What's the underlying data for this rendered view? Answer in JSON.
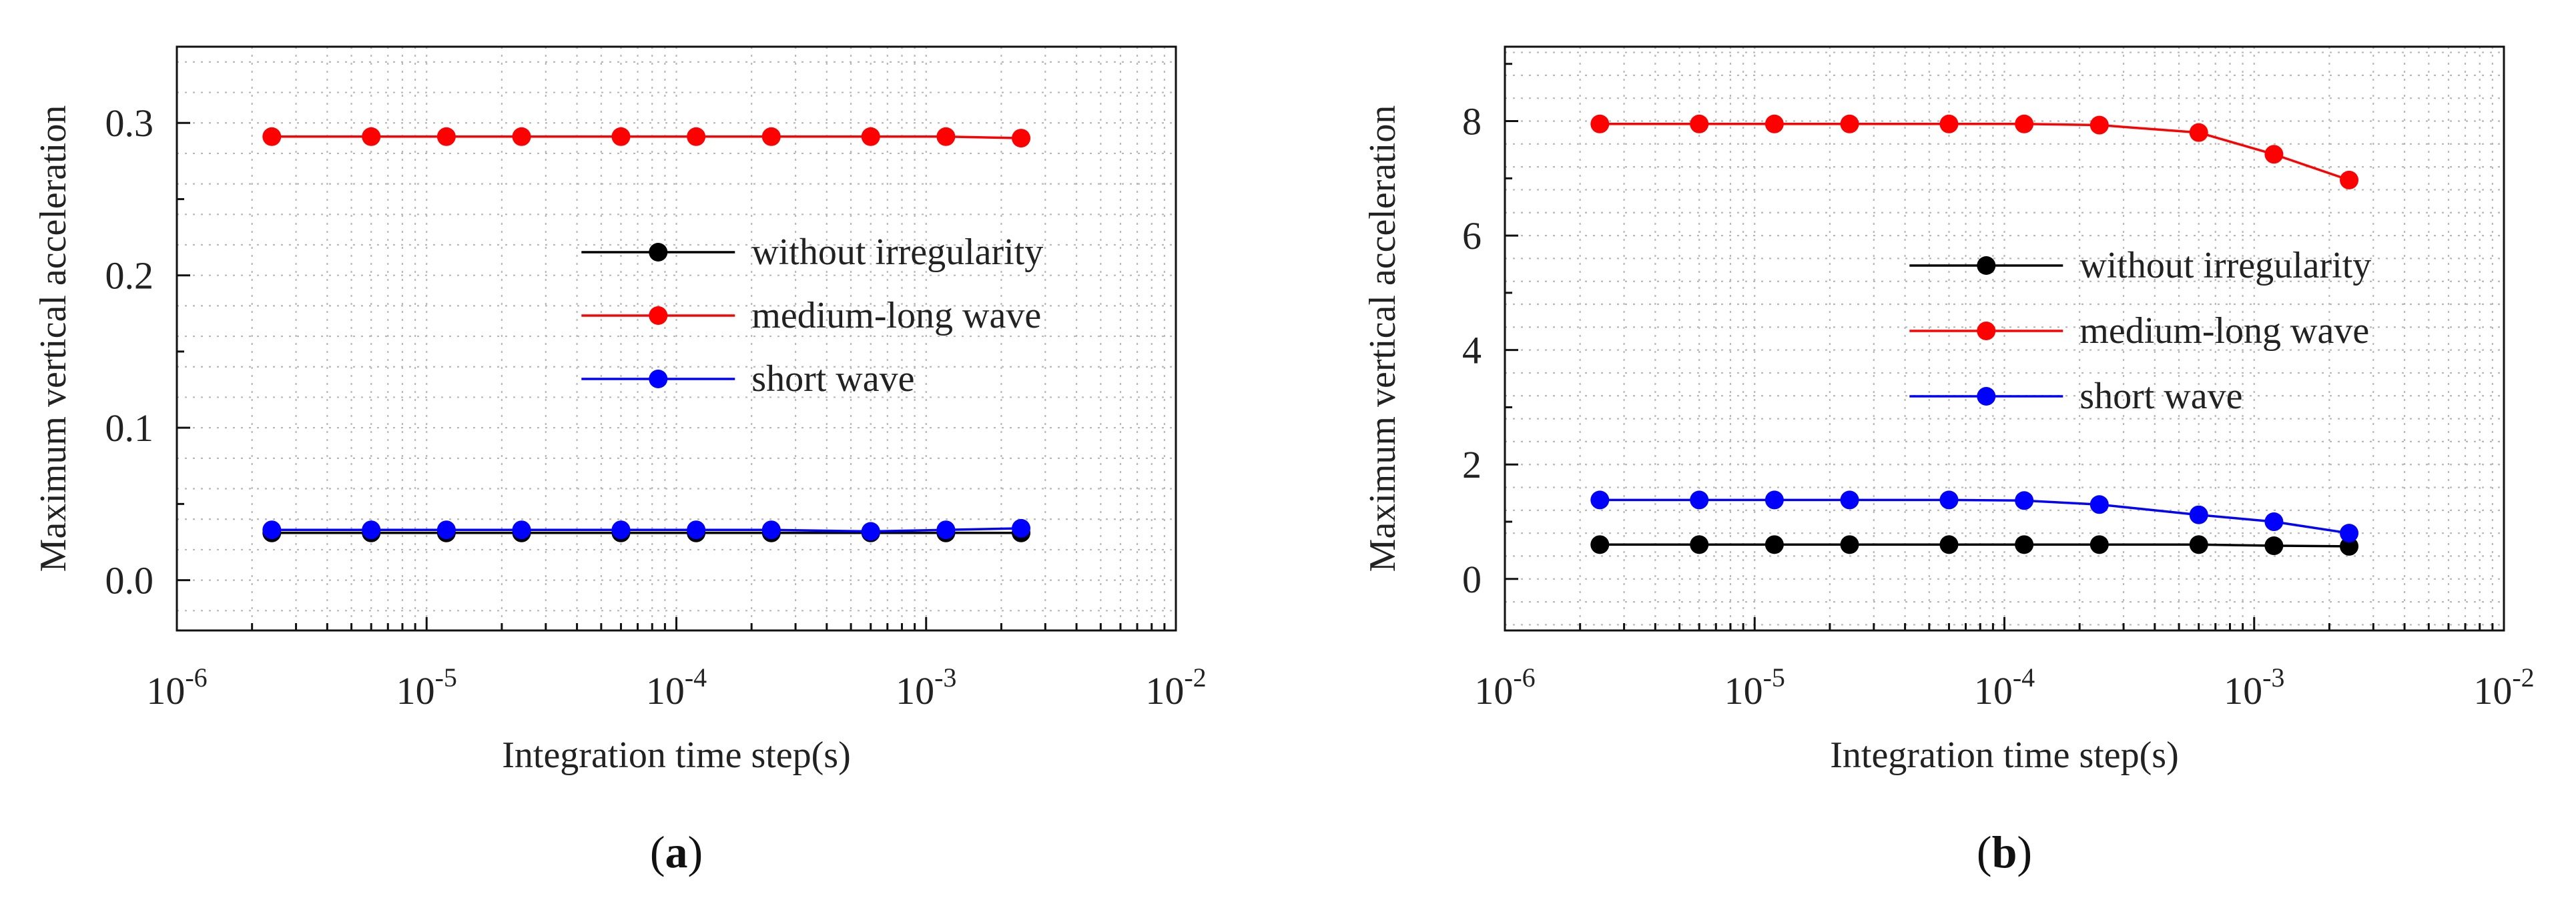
{
  "chart_data": [
    {
      "id": "a",
      "type": "line",
      "panel_label_open": "(",
      "panel_label": "a",
      "panel_label_close": ")",
      "xlabel": "Integration time step(s)",
      "ylabel": "Maximum vertical acceleration",
      "xscale": "log",
      "xlim": [
        1e-06,
        0.01
      ],
      "ylim": [
        -0.033,
        0.35
      ],
      "xticks": [
        {
          "base": "10",
          "exp": "-6",
          "value": 1e-06
        },
        {
          "base": "10",
          "exp": "-5",
          "value": 1e-05
        },
        {
          "base": "10",
          "exp": "-4",
          "value": 0.0001
        },
        {
          "base": "10",
          "exp": "-3",
          "value": 0.001
        },
        {
          "base": "10",
          "exp": "-2",
          "value": 0.01
        }
      ],
      "yticks": [
        {
          "label": "0.0",
          "value": 0.0
        },
        {
          "label": "0.1",
          "value": 0.1
        },
        {
          "label": "0.2",
          "value": 0.2
        },
        {
          "label": "0.3",
          "value": 0.3
        }
      ],
      "x": [
        2.4e-06,
        6e-06,
        1.2e-05,
        2.4e-05,
        6e-05,
        0.00012,
        0.00024,
        0.0006,
        0.0012,
        0.0024
      ],
      "series": [
        {
          "name": "without irregularity",
          "color": "#000000",
          "values": [
            0.031,
            0.031,
            0.031,
            0.031,
            0.031,
            0.031,
            0.031,
            0.031,
            0.031,
            0.031
          ]
        },
        {
          "name": "medium-long wave",
          "color": "#ff0000",
          "values": [
            0.291,
            0.291,
            0.291,
            0.291,
            0.291,
            0.291,
            0.291,
            0.291,
            0.291,
            0.29
          ]
        },
        {
          "name": "short wave",
          "color": "#0000ff",
          "values": [
            0.033,
            0.033,
            0.033,
            0.033,
            0.033,
            0.033,
            0.033,
            0.032,
            0.033,
            0.034
          ]
        }
      ],
      "grid": true,
      "legend_position": "center-right"
    },
    {
      "id": "b",
      "type": "line",
      "panel_label_open": "(",
      "panel_label": "b",
      "panel_label_close": ")",
      "xlabel": "Integration time step(s)",
      "ylabel": "Maximum vertical acceleration",
      "xscale": "log",
      "xlim": [
        1e-06,
        0.01
      ],
      "ylim": [
        -0.9,
        9.3
      ],
      "xticks": [
        {
          "base": "10",
          "exp": "-6",
          "value": 1e-06
        },
        {
          "base": "10",
          "exp": "-5",
          "value": 1e-05
        },
        {
          "base": "10",
          "exp": "-4",
          "value": 0.0001
        },
        {
          "base": "10",
          "exp": "-3",
          "value": 0.001
        },
        {
          "base": "10",
          "exp": "-2",
          "value": 0.01
        }
      ],
      "yticks": [
        {
          "label": "0",
          "value": 0
        },
        {
          "label": "2",
          "value": 2
        },
        {
          "label": "4",
          "value": 4
        },
        {
          "label": "6",
          "value": 6
        },
        {
          "label": "8",
          "value": 8
        }
      ],
      "x": [
        2.4e-06,
        6e-06,
        1.2e-05,
        2.4e-05,
        6e-05,
        0.00012,
        0.00024,
        0.0006,
        0.0012,
        0.0024
      ],
      "series": [
        {
          "name": "without irregularity",
          "color": "#000000",
          "values": [
            0.6,
            0.6,
            0.6,
            0.6,
            0.6,
            0.6,
            0.6,
            0.6,
            0.58,
            0.57
          ]
        },
        {
          "name": "medium-long wave",
          "color": "#ff0000",
          "values": [
            7.95,
            7.95,
            7.95,
            7.95,
            7.95,
            7.95,
            7.93,
            7.8,
            7.42,
            6.97
          ]
        },
        {
          "name": "short wave",
          "color": "#0000ff",
          "values": [
            1.38,
            1.38,
            1.38,
            1.38,
            1.38,
            1.37,
            1.3,
            1.12,
            1.0,
            0.8
          ]
        }
      ],
      "grid": true,
      "legend_position": "center-right"
    }
  ]
}
